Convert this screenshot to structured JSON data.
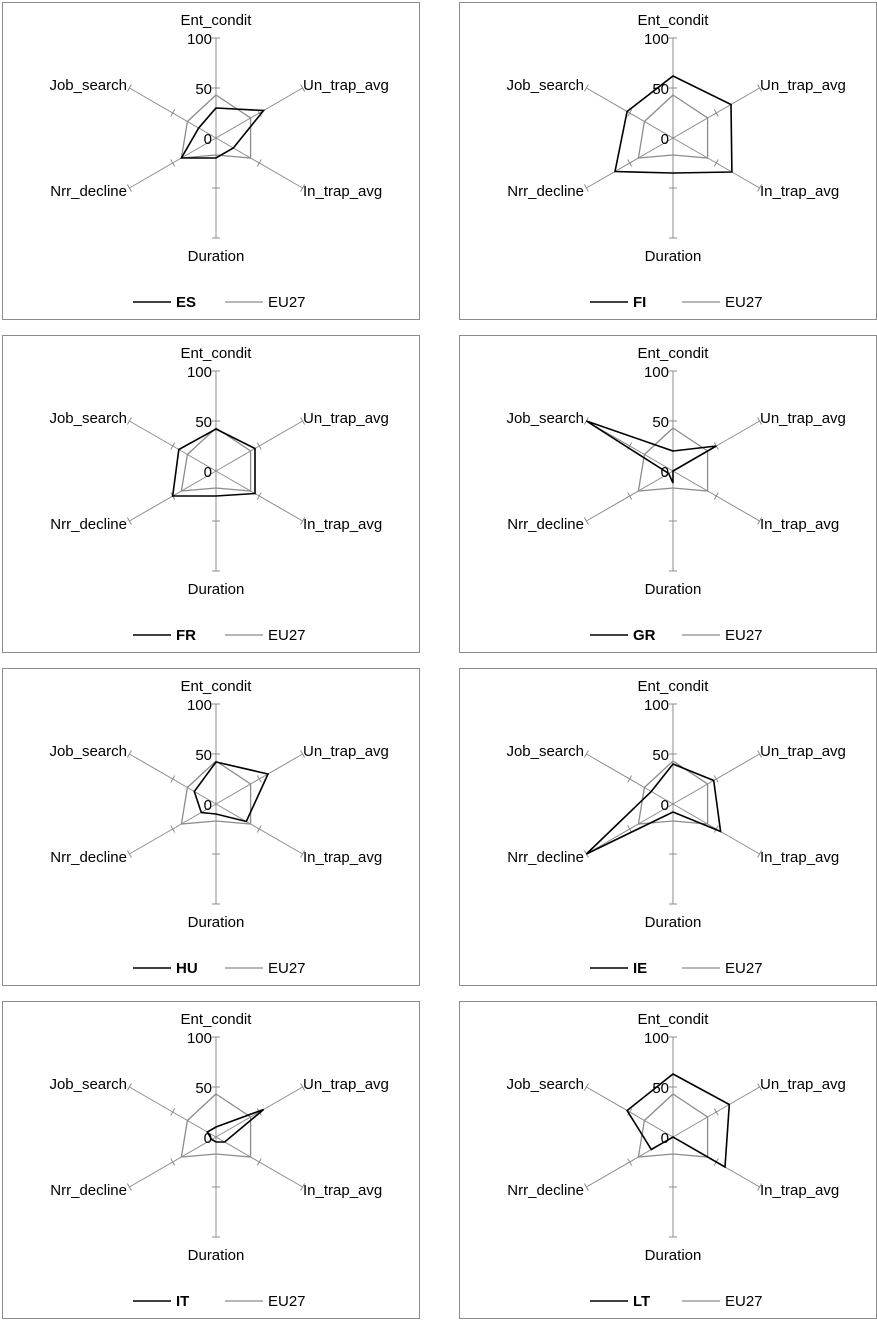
{
  "chart_data": [
    {
      "type": "radar",
      "axes": [
        "Ent_condit",
        "Un_trap_avg",
        "In_trap_avg",
        "Duration",
        "Nrr_decline",
        "Job_search"
      ],
      "rlim": [
        0,
        100
      ],
      "ticks": [
        "0",
        "50",
        "100"
      ],
      "series": [
        {
          "name": "ES",
          "values": [
            30,
            55,
            20,
            20,
            40,
            20
          ]
        },
        {
          "name": "EU27",
          "values": [
            43,
            40,
            40,
            17,
            40,
            33
          ]
        }
      ]
    },
    {
      "type": "radar",
      "axes": [
        "Ent_condit",
        "Un_trap_avg",
        "In_trap_avg",
        "Duration",
        "Nrr_decline",
        "Job_search"
      ],
      "rlim": [
        0,
        100
      ],
      "ticks": [
        "0",
        "50",
        "100"
      ],
      "series": [
        {
          "name": "FI",
          "values": [
            62,
            67,
            68,
            35,
            67,
            53
          ]
        },
        {
          "name": "EU27",
          "values": [
            43,
            40,
            40,
            17,
            40,
            33
          ]
        }
      ]
    },
    {
      "type": "radar",
      "axes": [
        "Ent_condit",
        "Un_trap_avg",
        "In_trap_avg",
        "Duration",
        "Nrr_decline",
        "Job_search"
      ],
      "rlim": [
        0,
        100
      ],
      "ticks": [
        "0",
        "50",
        "100"
      ],
      "series": [
        {
          "name": "FR",
          "values": [
            42,
            45,
            45,
            25,
            50,
            43
          ]
        },
        {
          "name": "EU27",
          "values": [
            43,
            40,
            40,
            17,
            40,
            33
          ]
        }
      ]
    },
    {
      "type": "radar",
      "axes": [
        "Ent_condit",
        "Un_trap_avg",
        "In_trap_avg",
        "Duration",
        "Nrr_decline",
        "Job_search"
      ],
      "rlim": [
        0,
        100
      ],
      "ticks": [
        "0",
        "50",
        "100"
      ],
      "series": [
        {
          "name": "GR",
          "values": [
            20,
            50,
            0,
            12,
            5,
            100
          ]
        },
        {
          "name": "EU27",
          "values": [
            43,
            40,
            40,
            17,
            40,
            33
          ]
        }
      ]
    },
    {
      "type": "radar",
      "axes": [
        "Ent_condit",
        "Un_trap_avg",
        "In_trap_avg",
        "Duration",
        "Nrr_decline",
        "Job_search"
      ],
      "rlim": [
        0,
        100
      ],
      "ticks": [
        "0",
        "50",
        "100"
      ],
      "series": [
        {
          "name": "HU",
          "values": [
            42,
            60,
            35,
            10,
            17,
            25
          ]
        },
        {
          "name": "EU27",
          "values": [
            43,
            40,
            40,
            17,
            40,
            33
          ]
        }
      ]
    },
    {
      "type": "radar",
      "axes": [
        "Ent_condit",
        "Un_trap_avg",
        "In_trap_avg",
        "Duration",
        "Nrr_decline",
        "Job_search"
      ],
      "rlim": [
        0,
        100
      ],
      "ticks": [
        "0",
        "50",
        "100"
      ],
      "series": [
        {
          "name": "IE",
          "values": [
            40,
            47,
            55,
            8,
            100,
            25
          ]
        },
        {
          "name": "EU27",
          "values": [
            43,
            40,
            40,
            17,
            40,
            33
          ]
        }
      ]
    },
    {
      "type": "radar",
      "axes": [
        "Ent_condit",
        "Un_trap_avg",
        "In_trap_avg",
        "Duration",
        "Nrr_decline",
        "Job_search"
      ],
      "rlim": [
        0,
        100
      ],
      "ticks": [
        "0",
        "50",
        "100"
      ],
      "series": [
        {
          "name": "IT",
          "values": [
            10,
            55,
            10,
            5,
            5,
            10
          ]
        },
        {
          "name": "EU27",
          "values": [
            43,
            40,
            40,
            17,
            40,
            33
          ]
        }
      ]
    },
    {
      "type": "radar",
      "axes": [
        "Ent_condit",
        "Un_trap_avg",
        "In_trap_avg",
        "Duration",
        "Nrr_decline",
        "Job_search"
      ],
      "rlim": [
        0,
        100
      ],
      "ticks": [
        "0",
        "50",
        "100"
      ],
      "series": [
        {
          "name": "LT",
          "values": [
            63,
            65,
            60,
            0,
            25,
            53
          ]
        },
        {
          "name": "EU27",
          "values": [
            43,
            40,
            40,
            17,
            40,
            33
          ]
        }
      ]
    }
  ]
}
